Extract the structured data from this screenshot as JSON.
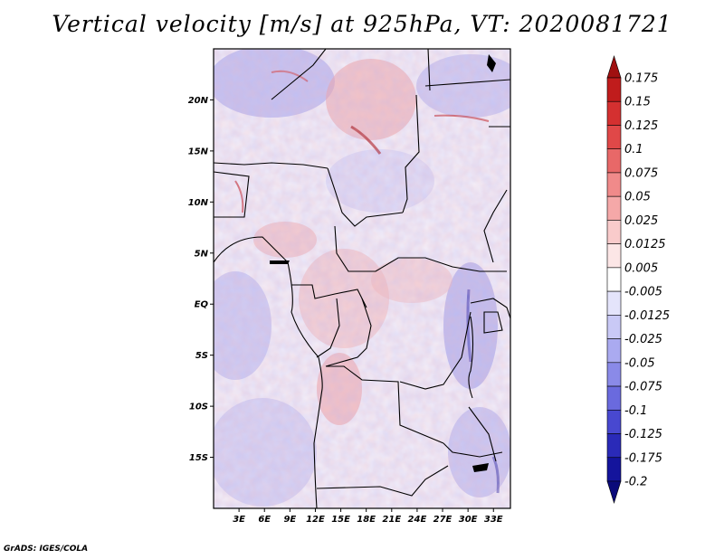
{
  "title": "Vertical velocity [m/s] at 925hPa, VT: 2020081721",
  "footer": "GrADS: IGES/COLA",
  "map": {
    "lon_range": [
      0,
      35
    ],
    "lat_range": [
      -20,
      25
    ],
    "lat_ticks": [
      {
        "value": 20,
        "label": "20N"
      },
      {
        "value": 15,
        "label": "15N"
      },
      {
        "value": 10,
        "label": "10N"
      },
      {
        "value": 5,
        "label": "5N"
      },
      {
        "value": 0,
        "label": "EQ"
      },
      {
        "value": -5,
        "label": "5S"
      },
      {
        "value": -10,
        "label": "10S"
      },
      {
        "value": -15,
        "label": "15S"
      }
    ],
    "lon_ticks": [
      {
        "value": 3,
        "label": "3E"
      },
      {
        "value": 6,
        "label": "6E"
      },
      {
        "value": 9,
        "label": "9E"
      },
      {
        "value": 12,
        "label": "12E"
      },
      {
        "value": 15,
        "label": "15E"
      },
      {
        "value": 18,
        "label": "18E"
      },
      {
        "value": 21,
        "label": "21E"
      },
      {
        "value": 24,
        "label": "24E"
      },
      {
        "value": 27,
        "label": "27E"
      },
      {
        "value": 30,
        "label": "30E"
      },
      {
        "value": 33,
        "label": "33E"
      }
    ]
  },
  "colorbar": {
    "levels": [
      "0.175",
      "0.15",
      "0.125",
      "0.1",
      "0.075",
      "0.05",
      "0.025",
      "0.0125",
      "0.005",
      "-0.005",
      "-0.0125",
      "-0.025",
      "-0.05",
      "-0.075",
      "-0.1",
      "-0.125",
      "-0.175",
      "-0.2"
    ],
    "colors": [
      "#a01010",
      "#c01c1c",
      "#d43030",
      "#e04848",
      "#e86868",
      "#f08a8a",
      "#f5a8a8",
      "#f9cbcb",
      "#fce6e6",
      "#ffffff",
      "#e4e4fb",
      "#c9c9f6",
      "#aaaaf0",
      "#8a8ae8",
      "#6a6ade",
      "#4848d0",
      "#2a2ab8",
      "#14149c",
      "#0a0a7a"
    ]
  }
}
